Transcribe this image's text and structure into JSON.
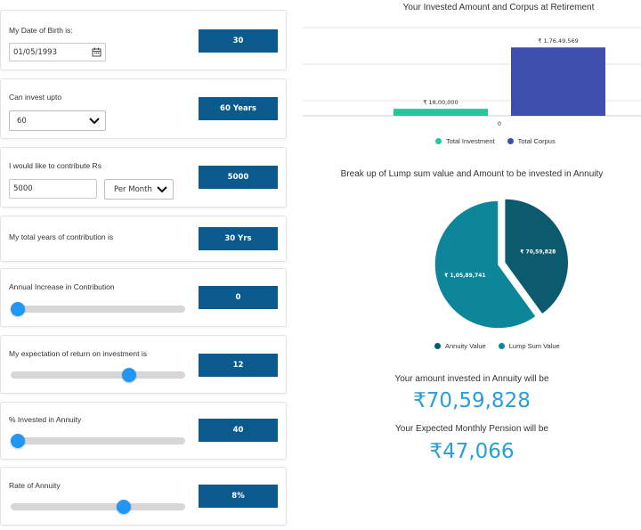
{
  "dob": {
    "label": "My Date of Birth is:",
    "value": "01/05/1993",
    "result": "30"
  },
  "invest_upto": {
    "label": "Can invest upto",
    "value": "60",
    "result": "60 Years"
  },
  "contribute": {
    "label": "I would like to contribute Rs",
    "amount": "5000",
    "frequency": "Per Month",
    "result": "5000"
  },
  "years": {
    "label": "My total years of contribution is",
    "result": "30 Yrs"
  },
  "annual_increase": {
    "label": "Annual Increase in Contribution",
    "result": "0",
    "slider_fraction": 0.04
  },
  "return_expectation": {
    "label": "My expectation of return on investment is",
    "result": "12",
    "slider_fraction": 0.68
  },
  "annuity_percent": {
    "label": "% Invested in Annuity",
    "result": "40",
    "slider_fraction": 0.04
  },
  "annuity_rate": {
    "label": "Rate of Annuity",
    "result": "8%",
    "slider_fraction": 0.65
  },
  "bar_chart": {
    "title": "Your Invested Amount and Corpus at Retirement",
    "x_tick": "0",
    "legend": [
      "Total Investment",
      "Total Corpus"
    ]
  },
  "pie_chart": {
    "title": "Break up of Lump sum value and Amount to be invested in Annuity",
    "legend": [
      "Annuity Value",
      "Lump Sum Value"
    ]
  },
  "chart_data": [
    {
      "type": "bar",
      "title": "Your Invested Amount and Corpus at Retirement",
      "categories": [
        "0"
      ],
      "series": [
        {
          "name": "Total Investment",
          "values": [
            1800000
          ],
          "label": "₹ 18,00,000",
          "color": "#1fc99b"
        },
        {
          "name": "Total Corpus",
          "values": [
            17649569
          ],
          "label": "₹ 1,76,49,569",
          "color": "#3d4fab"
        }
      ],
      "ylim": [
        0,
        20000000
      ],
      "legend_position": "bottom"
    },
    {
      "type": "pie",
      "title": "Break up of Lump sum value and Amount to be invested in Annuity",
      "slices": [
        {
          "name": "Annuity Value",
          "value": 7059828,
          "label": "₹ 70,59,828",
          "color": "#0b5a6e"
        },
        {
          "name": "Lump Sum Value",
          "value": 10589741,
          "label": "₹ 1,05,89,741",
          "color": "#0e8699"
        }
      ],
      "legend_position": "bottom"
    }
  ],
  "annuity_amount": {
    "label": "Your amount invested in Annuity will be",
    "value": "₹70,59,828"
  },
  "monthly_pension": {
    "label": "Your Expected Monthly Pension will be",
    "value": "₹47,066"
  },
  "colors": {
    "result_box": "#0b5a8e",
    "slider": "#2196f3",
    "highlight_text": "#2a9fd6"
  }
}
